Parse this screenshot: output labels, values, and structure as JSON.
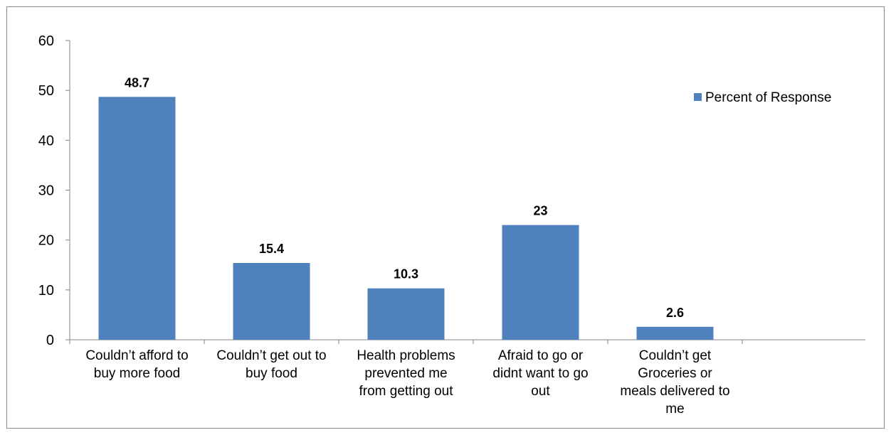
{
  "chart_data": {
    "type": "bar",
    "title": "",
    "xlabel": "",
    "ylabel": "",
    "categories": [
      [
        "Couldn’t afford to",
        "buy more food"
      ],
      [
        "Couldn’t get out to",
        "buy food"
      ],
      [
        "Health problems",
        "prevented me",
        "from getting out"
      ],
      [
        "Afraid to go or",
        "didnt want to go",
        "out"
      ],
      [
        "Couldn’t get",
        "Groceries or",
        "meals delivered to",
        "me"
      ]
    ],
    "series": [
      {
        "name": "Percent of Response",
        "values": [
          48.7,
          15.4,
          10.3,
          23,
          2.6
        ],
        "labels": [
          "48.7",
          "15.4",
          "10.3",
          "23",
          "2.6"
        ]
      }
    ],
    "ylim": [
      0,
      60
    ],
    "yticks": [
      0,
      10,
      20,
      30,
      40,
      50,
      60
    ],
    "grid": false,
    "legend_position": "top-right",
    "bar_color": "#4f81bd"
  }
}
